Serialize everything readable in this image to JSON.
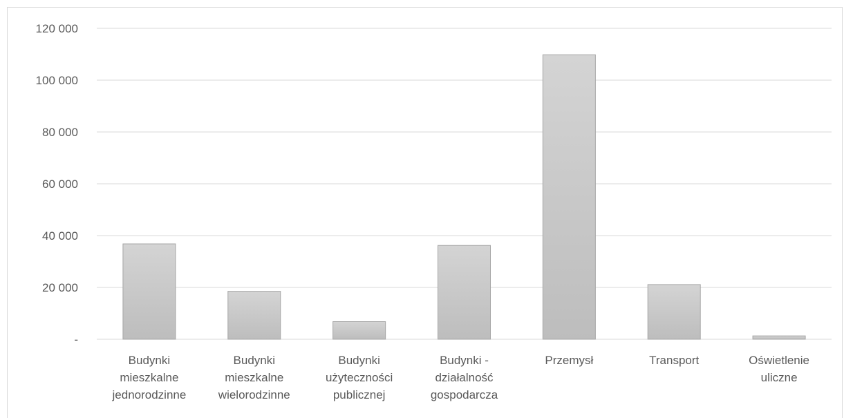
{
  "chart_data": {
    "type": "bar",
    "categories": [
      [
        "Budynki",
        "mieszkalne",
        "jednorodzinne"
      ],
      [
        "Budynki",
        "mieszkalne",
        "wielorodzinne"
      ],
      [
        "Budynki",
        "użyteczności",
        "publicznej"
      ],
      [
        "Budynki -",
        "działalność",
        "gospodarcza"
      ],
      [
        "Przemysł"
      ],
      [
        "Transport"
      ],
      [
        "Oświetlenie",
        "uliczne"
      ]
    ],
    "values": [
      36800,
      18500,
      6800,
      36200,
      109800,
      21100,
      1300
    ],
    "ylim": [
      0,
      120000
    ],
    "yticks": [
      0,
      20000,
      40000,
      60000,
      80000,
      100000,
      120000
    ],
    "ytick_labels": [
      "-",
      "20 000",
      "40 000",
      "60 000",
      "80 000",
      "100 000",
      "120 000"
    ],
    "grid": true,
    "bar_fill_top": "#d4d4d4",
    "bar_fill_bottom": "#bdbdbd",
    "bar_stroke": "#a6a6a6",
    "gridline_color": "#d9d9d9",
    "text_color": "#595959"
  }
}
